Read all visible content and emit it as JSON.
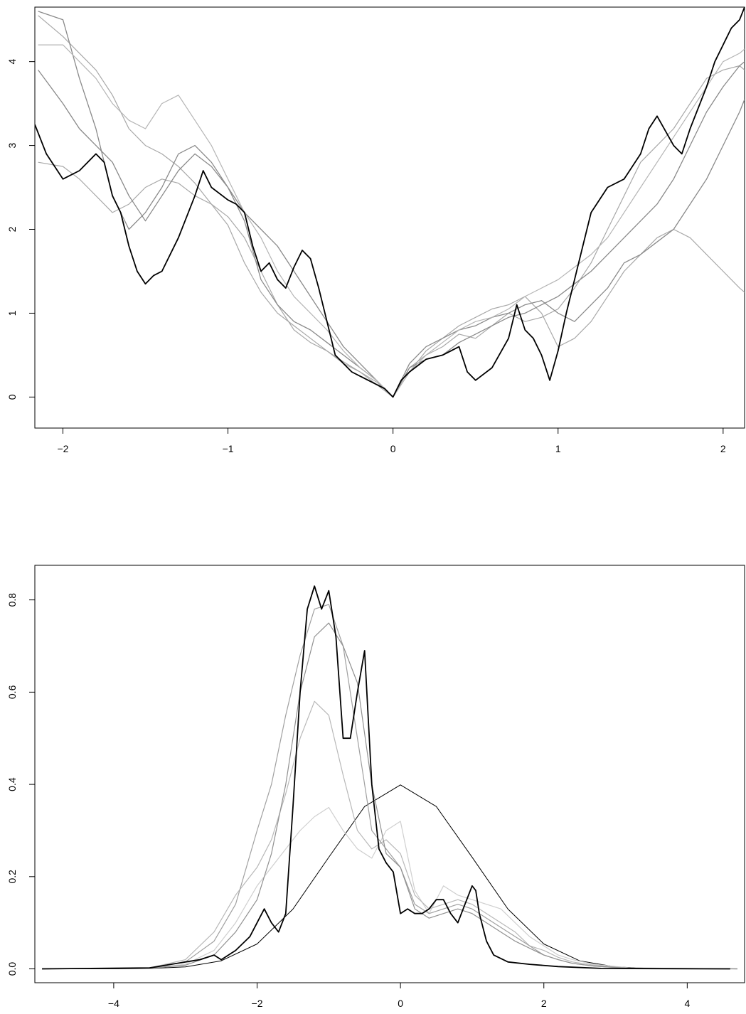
{
  "chart_data": [
    {
      "type": "line",
      "title": "",
      "xlabel": "",
      "ylabel": "",
      "xlim": [
        -2.17,
        2.13
      ],
      "ylim": [
        -0.37,
        4.65
      ],
      "x_ticks": [
        -2,
        -1,
        0,
        1,
        2
      ],
      "y_ticks": [
        0,
        1,
        2,
        3,
        4
      ],
      "grid": false,
      "series": [
        {
          "color": "#a8a8a8",
          "width": 1.2,
          "x": [
            -2.15,
            -2.0,
            -1.9,
            -1.8,
            -1.7,
            -1.6,
            -1.5,
            -1.4,
            -1.3,
            -1.2,
            -1.1,
            -1.0,
            -0.9,
            -0.8,
            -0.7,
            -0.6,
            -0.5,
            -0.4,
            -0.3,
            -0.2,
            -0.1,
            0.0,
            0.1,
            0.2,
            0.3,
            0.4,
            0.5,
            0.6,
            0.7,
            0.8,
            0.9,
            1.0,
            1.1,
            1.2,
            1.3,
            1.4,
            1.5,
            1.6,
            1.7,
            1.8,
            1.9,
            2.0,
            2.1,
            2.13
          ],
          "y": [
            4.55,
            4.3,
            4.1,
            3.9,
            3.6,
            3.2,
            3.0,
            2.9,
            2.75,
            2.55,
            2.3,
            2.05,
            1.6,
            1.25,
            1.0,
            0.85,
            0.7,
            0.55,
            0.42,
            0.3,
            0.15,
            0.0,
            0.35,
            0.5,
            0.6,
            0.75,
            0.7,
            0.85,
            1.0,
            0.9,
            0.95,
            1.05,
            1.3,
            1.6,
            2.0,
            2.4,
            2.8,
            3.0,
            3.2,
            3.5,
            3.8,
            3.9,
            3.95,
            3.9
          ]
        },
        {
          "color": "#a8a8a8",
          "width": 1.2,
          "x": [
            -2.15,
            -2.0,
            -1.9,
            -1.8,
            -1.7,
            -1.6,
            -1.5,
            -1.4,
            -1.3,
            -1.2,
            -1.1,
            -1.0,
            -0.9,
            -0.8,
            -0.7,
            -0.6,
            -0.5,
            -0.4,
            -0.3,
            -0.2,
            -0.1,
            0.0,
            0.1,
            0.2,
            0.3,
            0.4,
            0.5,
            0.6,
            0.7,
            0.8,
            0.9,
            1.0,
            1.1,
            1.2,
            1.3,
            1.4,
            1.5,
            1.6,
            1.7,
            1.8,
            1.9,
            2.0,
            2.1,
            2.13
          ],
          "y": [
            2.8,
            2.75,
            2.6,
            2.4,
            2.2,
            2.3,
            2.5,
            2.6,
            2.55,
            2.4,
            2.3,
            2.15,
            1.9,
            1.5,
            1.1,
            0.8,
            0.65,
            0.55,
            0.4,
            0.3,
            0.18,
            0.0,
            0.3,
            0.55,
            0.7,
            0.85,
            0.95,
            1.05,
            1.1,
            1.2,
            1.0,
            0.6,
            0.7,
            0.9,
            1.2,
            1.5,
            1.7,
            1.9,
            2.0,
            1.9,
            1.7,
            1.5,
            1.3,
            1.25
          ]
        },
        {
          "color": "#8a8a8a",
          "width": 1.3,
          "x": [
            -2.15,
            -2.0,
            -1.9,
            -1.8,
            -1.7,
            -1.6,
            -1.5,
            -1.4,
            -1.3,
            -1.2,
            -1.1,
            -1.0,
            -0.9,
            -0.8,
            -0.7,
            -0.6,
            -0.5,
            -0.4,
            -0.3,
            -0.2,
            -0.1,
            0.0,
            0.1,
            0.2,
            0.3,
            0.4,
            0.5,
            0.6,
            0.7,
            0.8,
            0.9,
            1.0,
            1.1,
            1.2,
            1.3,
            1.4,
            1.5,
            1.6,
            1.7,
            1.8,
            1.9,
            2.0,
            2.1,
            2.13
          ],
          "y": [
            3.9,
            3.5,
            3.2,
            3.0,
            2.8,
            2.4,
            2.1,
            2.4,
            2.7,
            2.9,
            2.75,
            2.5,
            2.1,
            1.4,
            1.1,
            0.9,
            0.8,
            0.65,
            0.5,
            0.35,
            0.2,
            0.0,
            0.4,
            0.6,
            0.7,
            0.8,
            0.85,
            0.95,
            1.0,
            1.1,
            1.15,
            1.0,
            0.9,
            1.1,
            1.3,
            1.6,
            1.7,
            1.85,
            2.0,
            2.3,
            2.6,
            3.0,
            3.4,
            3.55
          ]
        },
        {
          "color": "#8a8a8a",
          "width": 1.3,
          "x": [
            -2.15,
            -2.0,
            -1.9,
            -1.8,
            -1.7,
            -1.6,
            -1.5,
            -1.4,
            -1.3,
            -1.2,
            -1.1,
            -1.0,
            -0.9,
            -0.8,
            -0.7,
            -0.6,
            -0.5,
            -0.4,
            -0.3,
            -0.2,
            -0.1,
            0.0,
            0.1,
            0.2,
            0.3,
            0.4,
            0.5,
            0.6,
            0.7,
            0.8,
            0.9,
            1.0,
            1.1,
            1.2,
            1.3,
            1.4,
            1.5,
            1.6,
            1.7,
            1.8,
            1.9,
            2.0,
            2.1,
            2.13
          ],
          "y": [
            4.6,
            4.5,
            3.8,
            3.2,
            2.4,
            2.0,
            2.2,
            2.5,
            2.9,
            3.0,
            2.8,
            2.5,
            2.2,
            2.0,
            1.8,
            1.5,
            1.2,
            0.9,
            0.6,
            0.4,
            0.2,
            0.0,
            0.35,
            0.45,
            0.5,
            0.65,
            0.75,
            0.85,
            0.95,
            1.0,
            1.1,
            1.2,
            1.35,
            1.5,
            1.7,
            1.9,
            2.1,
            2.3,
            2.6,
            3.0,
            3.4,
            3.7,
            3.95,
            4.0
          ]
        },
        {
          "color": "#b5b5b5",
          "width": 1.2,
          "x": [
            -2.15,
            -2.0,
            -1.9,
            -1.8,
            -1.7,
            -1.6,
            -1.5,
            -1.4,
            -1.3,
            -1.2,
            -1.1,
            -1.0,
            -0.9,
            -0.8,
            -0.7,
            -0.6,
            -0.5,
            -0.4,
            -0.3,
            -0.2,
            -0.1,
            0.0,
            0.1,
            0.2,
            0.3,
            0.4,
            0.5,
            0.6,
            0.7,
            0.8,
            0.9,
            1.0,
            1.1,
            1.2,
            1.3,
            1.4,
            1.5,
            1.6,
            1.7,
            1.8,
            1.9,
            2.0,
            2.1,
            2.13
          ],
          "y": [
            4.2,
            4.2,
            4.0,
            3.8,
            3.5,
            3.3,
            3.2,
            3.5,
            3.6,
            3.3,
            3.0,
            2.6,
            2.2,
            1.9,
            1.5,
            1.2,
            1.0,
            0.8,
            0.55,
            0.35,
            0.2,
            0.0,
            0.3,
            0.5,
            0.65,
            0.8,
            0.9,
            0.95,
            1.05,
            1.2,
            1.3,
            1.4,
            1.55,
            1.7,
            1.9,
            2.2,
            2.5,
            2.8,
            3.1,
            3.4,
            3.7,
            4.0,
            4.1,
            4.15
          ]
        },
        {
          "color": "#000000",
          "width": 1.8,
          "x": [
            -2.17,
            -2.1,
            -2.0,
            -1.9,
            -1.8,
            -1.75,
            -1.7,
            -1.65,
            -1.6,
            -1.55,
            -1.5,
            -1.45,
            -1.4,
            -1.3,
            -1.2,
            -1.15,
            -1.1,
            -1.0,
            -0.95,
            -0.9,
            -0.85,
            -0.8,
            -0.75,
            -0.7,
            -0.65,
            -0.6,
            -0.55,
            -0.5,
            -0.45,
            -0.4,
            -0.35,
            -0.3,
            -0.25,
            -0.2,
            -0.1,
            -0.05,
            0.0,
            0.05,
            0.1,
            0.2,
            0.3,
            0.4,
            0.45,
            0.5,
            0.6,
            0.7,
            0.75,
            0.8,
            0.85,
            0.9,
            0.95,
            1.0,
            1.05,
            1.1,
            1.15,
            1.2,
            1.3,
            1.4,
            1.5,
            1.55,
            1.6,
            1.7,
            1.75,
            1.8,
            1.9,
            1.95,
            2.0,
            2.05,
            2.1,
            2.13
          ],
          "y": [
            3.25,
            2.9,
            2.6,
            2.7,
            2.9,
            2.8,
            2.4,
            2.2,
            1.8,
            1.5,
            1.35,
            1.45,
            1.5,
            1.9,
            2.4,
            2.7,
            2.5,
            2.35,
            2.3,
            2.2,
            1.8,
            1.5,
            1.6,
            1.4,
            1.3,
            1.55,
            1.75,
            1.65,
            1.3,
            0.9,
            0.5,
            0.4,
            0.3,
            0.25,
            0.15,
            0.1,
            0.0,
            0.2,
            0.3,
            0.45,
            0.5,
            0.6,
            0.3,
            0.2,
            0.35,
            0.7,
            1.1,
            0.8,
            0.7,
            0.5,
            0.2,
            0.55,
            1.0,
            1.4,
            1.8,
            2.2,
            2.5,
            2.6,
            2.9,
            3.2,
            3.35,
            3.0,
            2.9,
            3.2,
            3.7,
            4.0,
            4.2,
            4.4,
            4.5,
            4.65
          ]
        }
      ]
    },
    {
      "type": "line",
      "title": "",
      "xlabel": "",
      "ylabel": "",
      "xlim": [
        -5.1,
        4.8
      ],
      "ylim": [
        -0.03,
        0.875
      ],
      "x_ticks": [
        -4,
        -2,
        0,
        2,
        4
      ],
      "y_ticks": [
        0.0,
        0.2,
        0.4,
        0.6,
        0.8
      ],
      "y_tick_labels": [
        "0.0",
        "0.2",
        "0.4",
        "0.6",
        "0.8"
      ],
      "grid": false,
      "series": [
        {
          "color": "#000000",
          "width": 1.0,
          "x": [
            -5.0,
            -4.5,
            -4.0,
            -3.5,
            -3.0,
            -2.5,
            -2.0,
            -1.5,
            -1.0,
            -0.5,
            0.0,
            0.5,
            1.0,
            1.5,
            2.0,
            2.5,
            3.0,
            3.5,
            4.0,
            4.5
          ],
          "y": [
            0.0,
            0.0,
            0.0001,
            0.0009,
            0.0044,
            0.0175,
            0.054,
            0.1295,
            0.242,
            0.352,
            0.3989,
            0.352,
            0.242,
            0.1295,
            0.054,
            0.0175,
            0.0044,
            0.0009,
            0.0001,
            0.0
          ]
        },
        {
          "color": "#cfcfcf",
          "width": 1.2,
          "x": [
            -5.0,
            -3.5,
            -3.0,
            -2.6,
            -2.3,
            -2.0,
            -1.8,
            -1.6,
            -1.4,
            -1.2,
            -1.0,
            -0.8,
            -0.6,
            -0.4,
            -0.2,
            0.0,
            0.2,
            0.4,
            0.6,
            0.8,
            1.0,
            1.2,
            1.4,
            1.6,
            1.8,
            2.0,
            2.2,
            2.4,
            2.7,
            3.2,
            4.7
          ],
          "y": [
            0.0,
            0.002,
            0.01,
            0.04,
            0.1,
            0.18,
            0.22,
            0.26,
            0.3,
            0.33,
            0.35,
            0.3,
            0.26,
            0.24,
            0.3,
            0.32,
            0.17,
            0.12,
            0.18,
            0.16,
            0.15,
            0.14,
            0.13,
            0.1,
            0.07,
            0.05,
            0.03,
            0.02,
            0.01,
            0.002,
            0.0
          ]
        },
        {
          "color": "#b8b8b8",
          "width": 1.2,
          "x": [
            -5.0,
            -3.5,
            -3.0,
            -2.6,
            -2.3,
            -2.0,
            -1.8,
            -1.6,
            -1.4,
            -1.2,
            -1.0,
            -0.8,
            -0.6,
            -0.4,
            -0.2,
            0.0,
            0.2,
            0.4,
            0.6,
            0.8,
            1.0,
            1.2,
            1.4,
            1.6,
            1.8,
            2.0,
            2.2,
            2.4,
            2.7,
            3.2,
            4.7
          ],
          "y": [
            0.0,
            0.002,
            0.02,
            0.08,
            0.16,
            0.22,
            0.28,
            0.38,
            0.5,
            0.58,
            0.55,
            0.42,
            0.3,
            0.26,
            0.28,
            0.25,
            0.16,
            0.13,
            0.14,
            0.15,
            0.14,
            0.12,
            0.1,
            0.08,
            0.05,
            0.04,
            0.025,
            0.015,
            0.008,
            0.002,
            0.0
          ]
        },
        {
          "color": "#a0a0a0",
          "width": 1.2,
          "x": [
            -5.0,
            -3.5,
            -3.0,
            -2.6,
            -2.3,
            -2.0,
            -1.8,
            -1.6,
            -1.4,
            -1.2,
            -1.0,
            -0.8,
            -0.6,
            -0.4,
            -0.2,
            0.0,
            0.2,
            0.4,
            0.6,
            0.8,
            1.0,
            1.2,
            1.4,
            1.6,
            1.8,
            2.0,
            2.2,
            2.4,
            2.7,
            3.2,
            4.7
          ],
          "y": [
            0.0,
            0.002,
            0.015,
            0.06,
            0.14,
            0.3,
            0.4,
            0.55,
            0.68,
            0.78,
            0.79,
            0.7,
            0.5,
            0.3,
            0.26,
            0.22,
            0.14,
            0.12,
            0.13,
            0.14,
            0.13,
            0.11,
            0.09,
            0.07,
            0.05,
            0.03,
            0.02,
            0.012,
            0.006,
            0.001,
            0.0
          ]
        },
        {
          "color": "#909090",
          "width": 1.2,
          "x": [
            -5.0,
            -3.5,
            -3.0,
            -2.6,
            -2.3,
            -2.0,
            -1.8,
            -1.6,
            -1.4,
            -1.2,
            -1.0,
            -0.8,
            -0.6,
            -0.4,
            -0.2,
            0.0,
            0.2,
            0.4,
            0.6,
            0.8,
            1.0,
            1.2,
            1.4,
            1.6,
            1.8,
            2.0,
            2.2,
            2.4,
            2.7,
            3.2,
            4.7
          ],
          "y": [
            0.0,
            0.001,
            0.008,
            0.03,
            0.08,
            0.15,
            0.25,
            0.4,
            0.6,
            0.72,
            0.75,
            0.7,
            0.62,
            0.4,
            0.25,
            0.22,
            0.13,
            0.11,
            0.12,
            0.13,
            0.12,
            0.1,
            0.08,
            0.06,
            0.045,
            0.03,
            0.02,
            0.012,
            0.006,
            0.001,
            0.0
          ]
        },
        {
          "color": "#000000",
          "width": 1.8,
          "x": [
            -5.0,
            -3.5,
            -3.0,
            -2.8,
            -2.6,
            -2.5,
            -2.3,
            -2.1,
            -2.0,
            -1.9,
            -1.8,
            -1.7,
            -1.6,
            -1.5,
            -1.4,
            -1.3,
            -1.2,
            -1.1,
            -1.0,
            -0.9,
            -0.8,
            -0.7,
            -0.6,
            -0.5,
            -0.4,
            -0.3,
            -0.2,
            -0.1,
            0.0,
            0.1,
            0.2,
            0.3,
            0.4,
            0.5,
            0.6,
            0.7,
            0.8,
            0.9,
            1.0,
            1.05,
            1.1,
            1.2,
            1.3,
            1.5,
            1.8,
            2.2,
            2.8,
            4.6
          ],
          "y": [
            0.0,
            0.002,
            0.015,
            0.02,
            0.03,
            0.02,
            0.04,
            0.07,
            0.1,
            0.13,
            0.1,
            0.08,
            0.12,
            0.35,
            0.6,
            0.78,
            0.83,
            0.78,
            0.82,
            0.72,
            0.5,
            0.5,
            0.6,
            0.69,
            0.4,
            0.26,
            0.23,
            0.21,
            0.12,
            0.13,
            0.12,
            0.12,
            0.13,
            0.15,
            0.15,
            0.12,
            0.1,
            0.14,
            0.18,
            0.17,
            0.12,
            0.06,
            0.03,
            0.015,
            0.01,
            0.005,
            0.001,
            0.0
          ]
        }
      ]
    }
  ]
}
